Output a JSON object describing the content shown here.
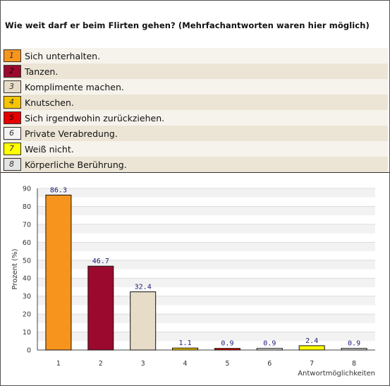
{
  "question": "Wie weit darf er beim Flirten gehen? (Mehrfachantworten waren hier möglich)",
  "legend": [
    {
      "num": "1",
      "label": "Sich unterhalten.",
      "color": "#f7941d"
    },
    {
      "num": "2",
      "label": "Tanzen.",
      "color": "#9b0a2e"
    },
    {
      "num": "3",
      "label": "Komplimente machen.",
      "color": "#e6dcc8"
    },
    {
      "num": "4",
      "label": "Knutschen.",
      "color": "#f5c500"
    },
    {
      "num": "5",
      "label": "Sich irgendwohin zurückziehen.",
      "color": "#e60000"
    },
    {
      "num": "6",
      "label": "Private Verabredung.",
      "color": "#f4f4f4"
    },
    {
      "num": "7",
      "label": "Weiß nicht.",
      "color": "#ffff00"
    },
    {
      "num": "8",
      "label": "Körperliche Berührung.",
      "color": "#e4e4e4"
    }
  ],
  "chart_data": {
    "type": "bar",
    "categories": [
      "1",
      "2",
      "3",
      "4",
      "5",
      "6",
      "7",
      "8"
    ],
    "values": [
      86.3,
      46.7,
      32.4,
      1.1,
      0.9,
      0.9,
      2.4,
      0.9
    ],
    "value_labels": [
      "86.3",
      "46.7",
      "32.4",
      "1.1",
      "0.9",
      "0.9",
      "2.4",
      "0.9"
    ],
    "ylabel": "Prozent (%)",
    "xlabel": "Antwortmöglichkeiten",
    "ylim": [
      0,
      90
    ],
    "yticks": [
      "0",
      "10",
      "20",
      "30",
      "40",
      "50",
      "60",
      "70",
      "80",
      "90"
    ],
    "grid": true,
    "band_colors": [
      "#ffffff",
      "#f2f2f2"
    ]
  }
}
